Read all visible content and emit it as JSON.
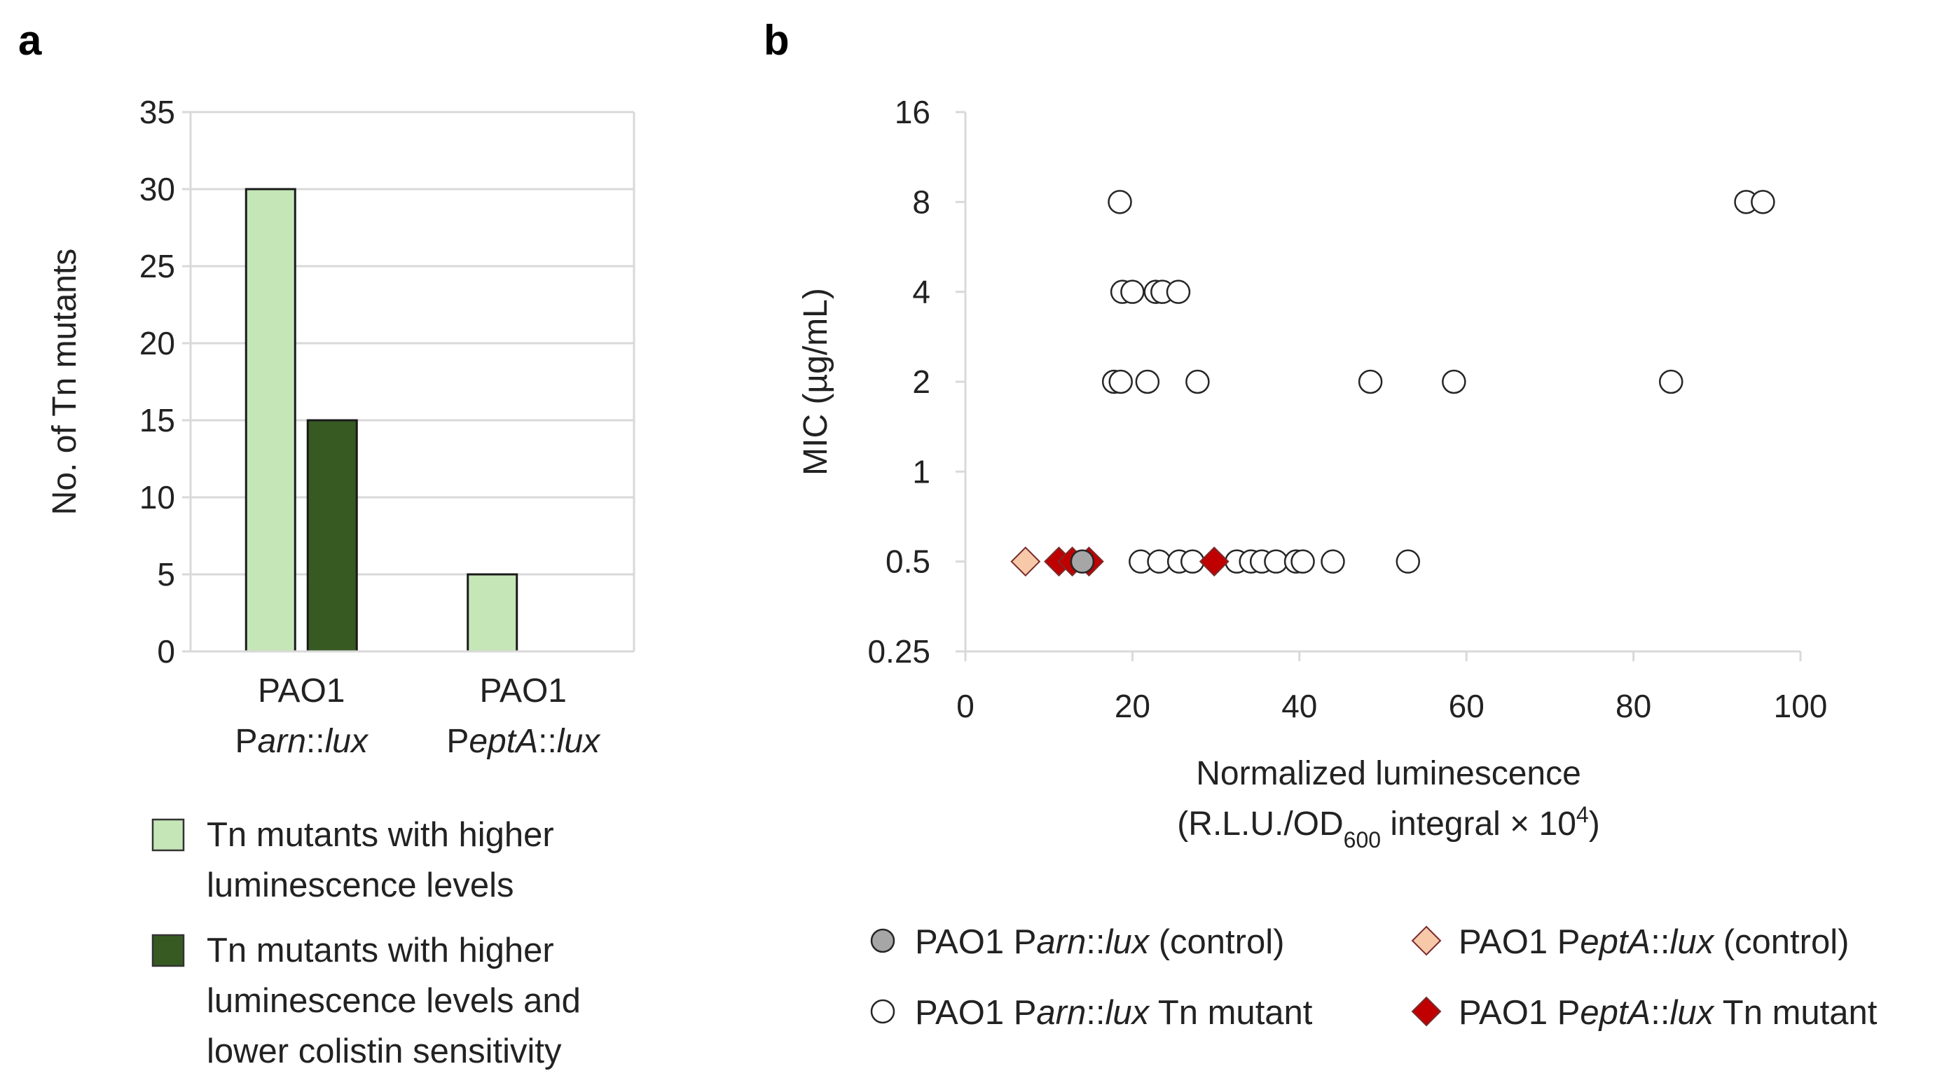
{
  "panel_a": {
    "label": "a"
  },
  "panel_b": {
    "label": "b"
  },
  "chart_data": [
    {
      "type": "bar",
      "panel": "a",
      "ylabel": "No. of Tn mutants",
      "ylim": [
        0,
        35
      ],
      "yticks": [
        0,
        5,
        10,
        15,
        20,
        25,
        30,
        35
      ],
      "grid": true,
      "categories": [
        {
          "line1": "PAO1",
          "prefix": "P",
          "italic": "arn",
          "suffix": "::",
          "italic2": "lux"
        },
        {
          "line1": "PAO1",
          "prefix": "P",
          "italic": "eptA",
          "suffix": "::",
          "italic2": "lux"
        }
      ],
      "series": [
        {
          "name": "Tn mutants with higher luminescence levels",
          "legend_lines": [
            "Tn mutants with higher",
            "luminescence levels"
          ],
          "color": "#c5e6b7",
          "values": [
            30,
            5
          ]
        },
        {
          "name": "Tn mutants with higher luminescence levels and lower colistin sensitivity",
          "legend_lines": [
            "Tn mutants with higher",
            "luminescence levels and",
            "lower colistin sensitivity"
          ],
          "color": "#375a23",
          "values": [
            15,
            0
          ]
        }
      ]
    },
    {
      "type": "scatter",
      "panel": "b",
      "xlabel": "Normalized luminescence",
      "xlabel2": {
        "a": "(R.L.U./OD",
        "sub": "600",
        "b": " integral × 10",
        "sup": "4",
        "c": ")"
      },
      "ylabel": "MIC (µg/mL)",
      "yscale": "log2",
      "xlim": [
        0,
        100
      ],
      "xticks": [
        0,
        20,
        40,
        60,
        80,
        100
      ],
      "yticks": [
        0.25,
        0.5,
        1,
        2,
        4,
        8,
        16
      ],
      "ytick_labels": [
        "0.25",
        "0.5",
        "1",
        "2",
        "4",
        "8",
        "16"
      ],
      "series": [
        {
          "name": "PAO1 Parn::lux Tn mutant",
          "marker": "circle",
          "fill": "#ffffff",
          "legend": {
            "a": "PAO1 P",
            "i": "arn",
            "b": "::",
            "i2": "lux",
            "c": " Tn mutant"
          },
          "points": [
            {
              "x": 18.5,
              "y": 8
            },
            {
              "x": 93.5,
              "y": 8
            },
            {
              "x": 95.5,
              "y": 8
            },
            {
              "x": 18.8,
              "y": 4
            },
            {
              "x": 20.0,
              "y": 4
            },
            {
              "x": 22.8,
              "y": 4
            },
            {
              "x": 23.6,
              "y": 4
            },
            {
              "x": 25.5,
              "y": 4
            },
            {
              "x": 17.8,
              "y": 2
            },
            {
              "x": 18.6,
              "y": 2
            },
            {
              "x": 21.8,
              "y": 2
            },
            {
              "x": 27.8,
              "y": 2
            },
            {
              "x": 48.5,
              "y": 2
            },
            {
              "x": 58.5,
              "y": 2
            },
            {
              "x": 84.5,
              "y": 2
            },
            {
              "x": 21.0,
              "y": 0.5
            },
            {
              "x": 23.2,
              "y": 0.5
            },
            {
              "x": 25.6,
              "y": 0.5
            },
            {
              "x": 27.2,
              "y": 0.5
            },
            {
              "x": 32.5,
              "y": 0.5
            },
            {
              "x": 34.2,
              "y": 0.5
            },
            {
              "x": 35.5,
              "y": 0.5
            },
            {
              "x": 37.2,
              "y": 0.5
            },
            {
              "x": 39.6,
              "y": 0.5
            },
            {
              "x": 40.4,
              "y": 0.5
            },
            {
              "x": 44.0,
              "y": 0.5
            },
            {
              "x": 53.0,
              "y": 0.5
            }
          ]
        },
        {
          "name": "PAO1 PeptA::lux Tn mutant",
          "marker": "diamond",
          "fill": "#c00000",
          "legend": {
            "a": "PAO1 P",
            "i": "eptA",
            "b": "::",
            "i2": "lux",
            "c": " Tn mutant"
          },
          "points": [
            {
              "x": 11.2,
              "y": 0.5
            },
            {
              "x": 12.8,
              "y": 0.5
            },
            {
              "x": 14.8,
              "y": 0.5
            },
            {
              "x": 29.8,
              "y": 0.5
            }
          ]
        },
        {
          "name": "PAO1 PeptA::lux (control)",
          "marker": "diamond",
          "fill": "#f7c9a9",
          "legend": {
            "a": "PAO1 P",
            "i": "eptA",
            "b": "::",
            "i2": "lux",
            "c": " (control)"
          },
          "points": [
            {
              "x": 7.2,
              "y": 0.5
            }
          ]
        },
        {
          "name": "PAO1 Parn::lux (control)",
          "marker": "circle",
          "fill": "#a6a6a6",
          "legend": {
            "a": "PAO1 P",
            "i": "arn",
            "b": "::",
            "i2": "lux",
            "c": " (control)"
          },
          "points": [
            {
              "x": 14.0,
              "y": 0.5
            }
          ]
        }
      ]
    }
  ]
}
